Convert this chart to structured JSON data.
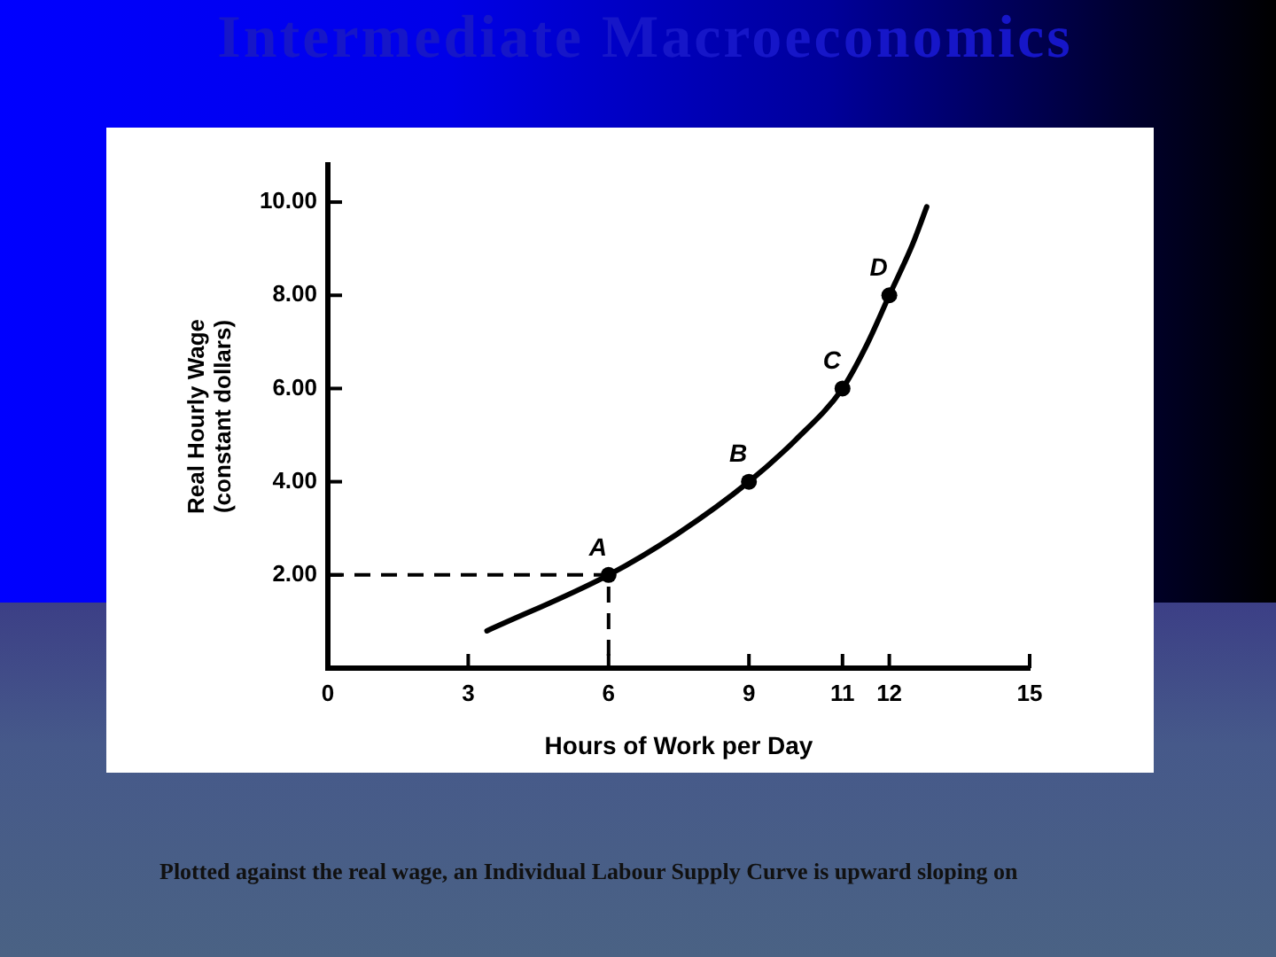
{
  "chart_data": {
    "type": "line",
    "title": "Intermediate Macroeconomics",
    "xlabel": "Hours of Work per Day",
    "ylabel": "Real Hourly Wage\n(constant dollars)",
    "series": [
      {
        "color": "#000000",
        "x": [
          3.4,
          6,
          7.5,
          9,
          10,
          11,
          11.5,
          12,
          12.5,
          12.8
        ],
        "values": [
          0.8,
          2,
          2.9,
          4,
          4.9,
          6,
          6.9,
          8,
          9.1,
          9.9
        ],
        "marker": "none"
      },
      {
        "type": "line",
        "color": "#000000",
        "x": [
          0,
          6,
          6
        ],
        "values": [
          2,
          2,
          0
        ],
        "marker": "none",
        "line_style": "dashed"
      },
      {
        "type": "scatter",
        "color": "#000000",
        "x": [
          6,
          9,
          11,
          12
        ],
        "values": [
          2,
          4,
          6,
          8
        ],
        "marker": "circle"
      }
    ],
    "xlim": [
      0,
      15
    ],
    "ylim": [
      0,
      10.8
    ],
    "xticks": [
      0,
      3,
      6,
      9,
      11,
      12,
      15
    ],
    "yticks": [
      {
        "value": 2,
        "label": "2.00"
      },
      {
        "value": 4,
        "label": "4.00"
      },
      {
        "value": 6,
        "label": "6.00"
      },
      {
        "value": 8,
        "label": "8.00"
      },
      {
        "value": 10,
        "label": "10.00"
      }
    ],
    "grid": false,
    "legend": false,
    "annotations": [
      {
        "text": "A",
        "x": 6,
        "y": 2
      },
      {
        "text": "B",
        "x": 9,
        "y": 4
      },
      {
        "text": "C",
        "x": 11,
        "y": 6
      },
      {
        "text": "D",
        "x": 12,
        "y": 8
      },
      "Plotted against the real wage, an Individual Labour Supply Curve is upward sloping on"
    ]
  }
}
